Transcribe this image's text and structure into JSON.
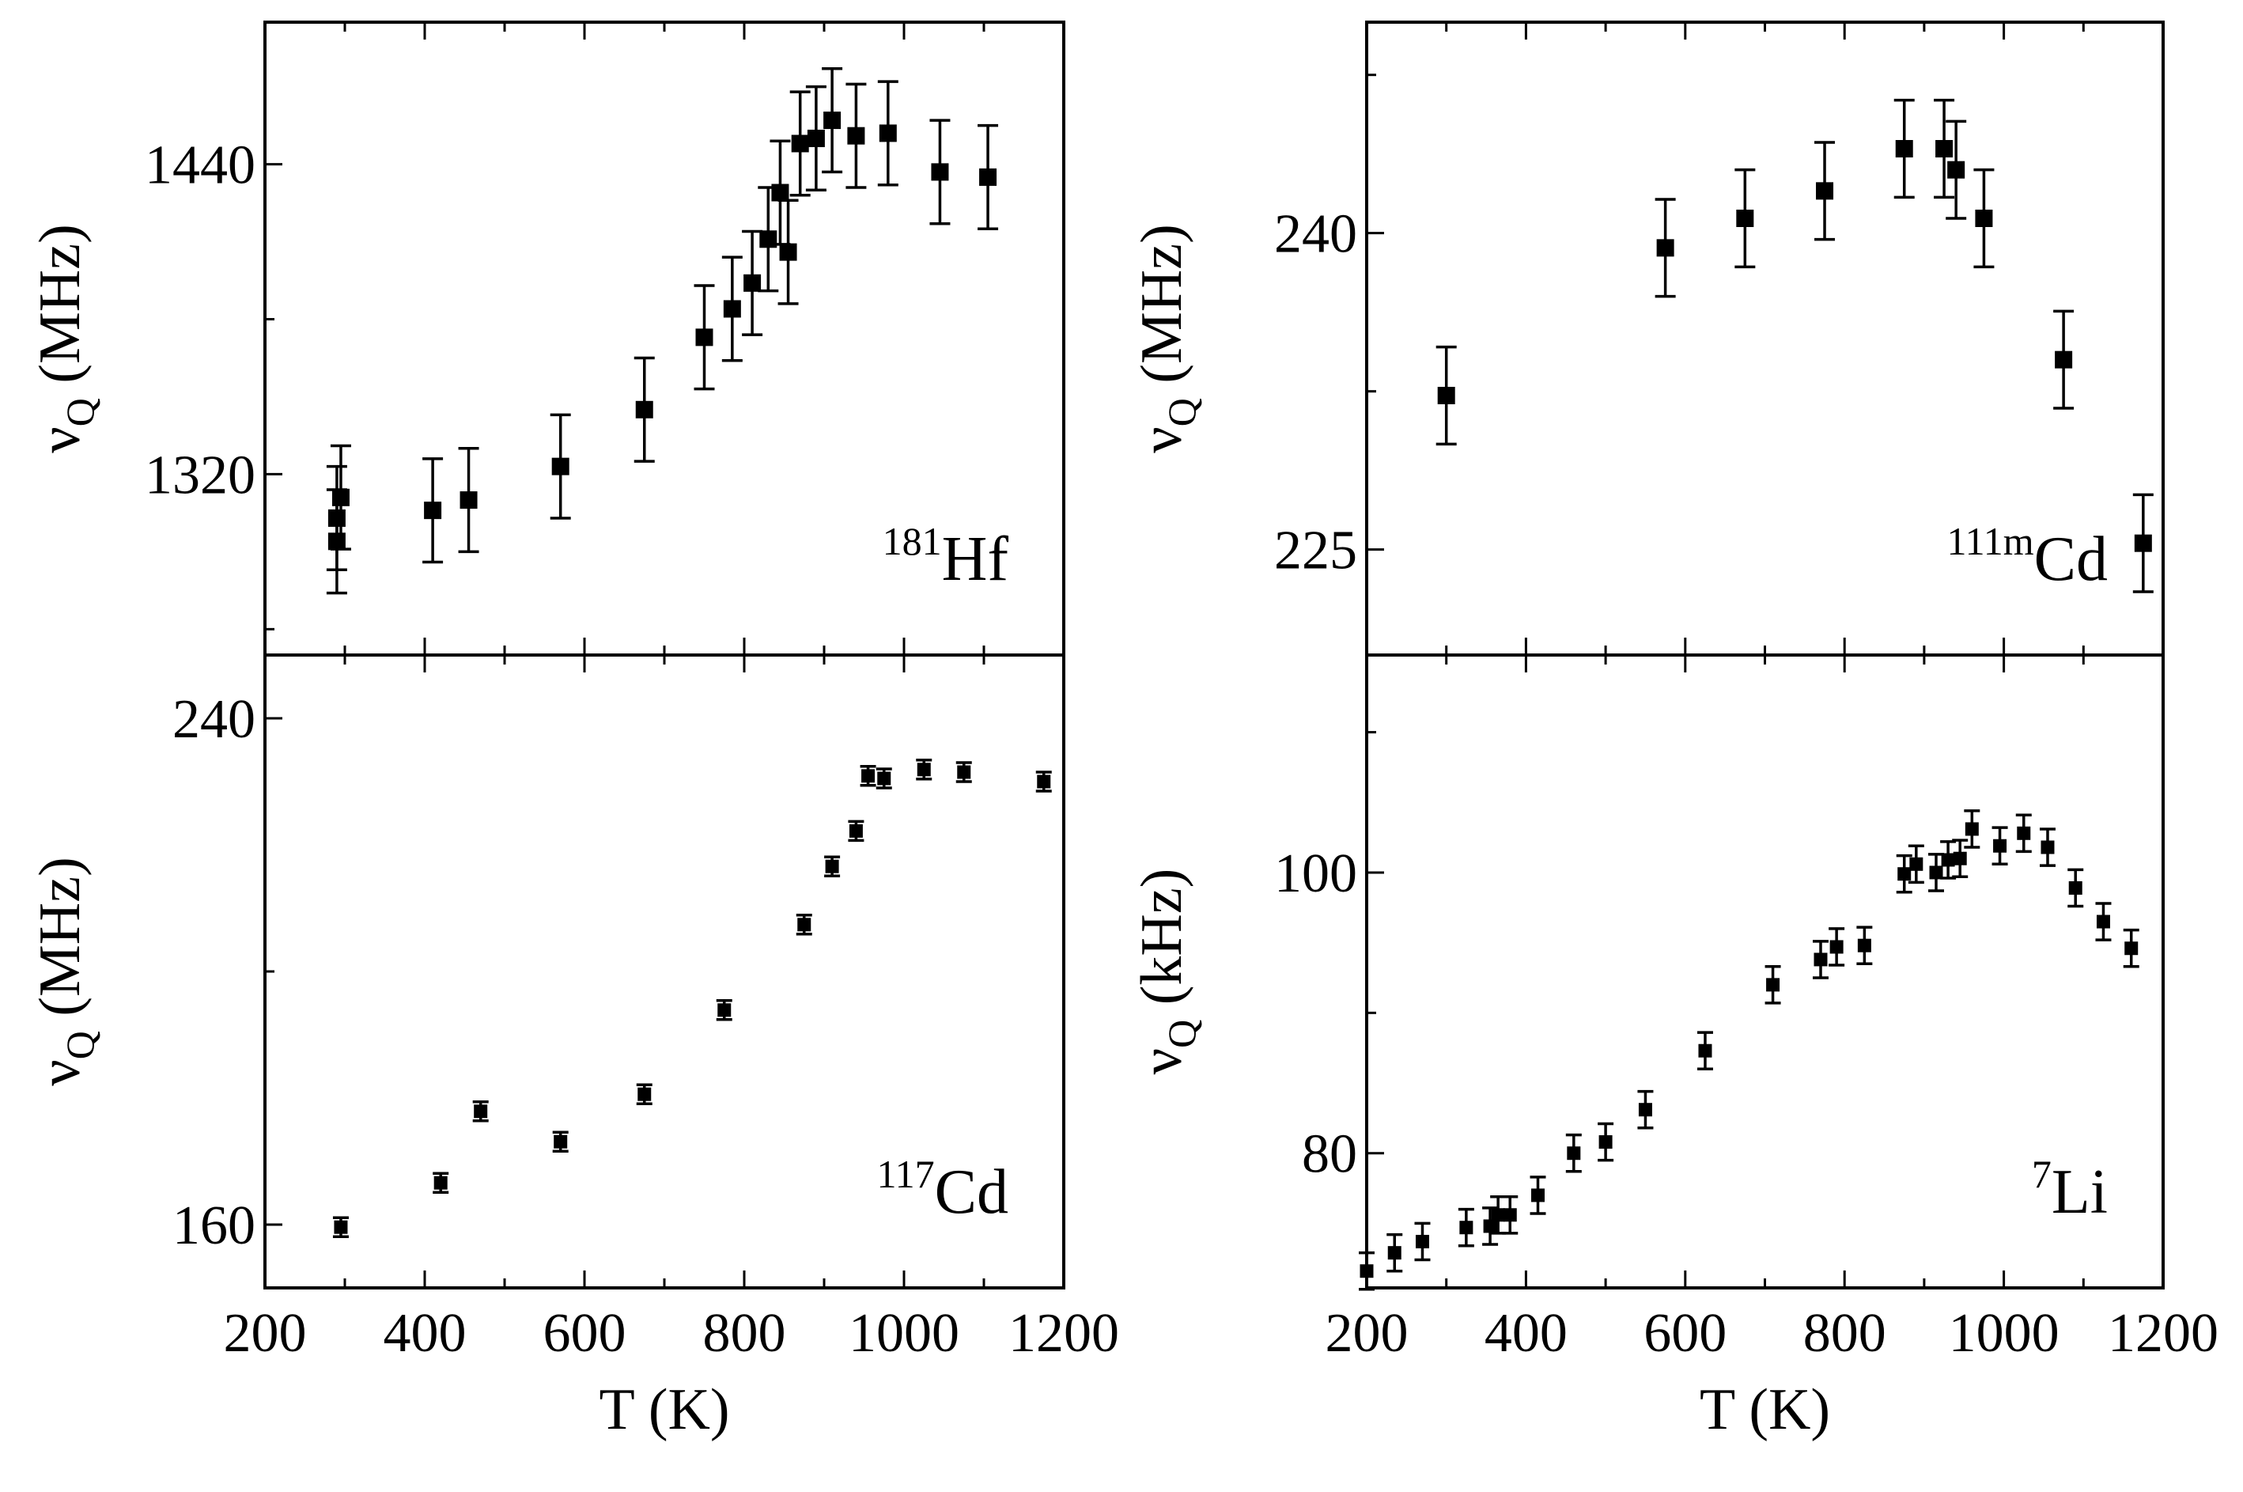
{
  "figure": {
    "x_axis_label": "T (K)",
    "accent_color": "#000000"
  },
  "chart_data": [
    {
      "id": "hf181",
      "type": "scatter",
      "panel_position": "top-left",
      "isotope": {
        "mass": "181",
        "element": "Hf"
      },
      "ylabel": {
        "symbol": "ν",
        "subscript": "Q",
        "unit": " (MHz)"
      },
      "xlim": [
        200,
        1200
      ],
      "ylim": [
        1250,
        1495
      ],
      "y_ticks": [
        1320,
        1440
      ],
      "show_x_ticklabels": false,
      "legend": "none",
      "series": [
        {
          "name": "181Hf",
          "x": [
            290,
            290,
            295,
            410,
            455,
            570,
            675,
            750,
            785,
            810,
            830,
            845,
            855,
            870,
            890,
            910,
            940,
            980,
            1045,
            1105
          ],
          "y": [
            1303,
            1294,
            1311,
            1306,
            1310,
            1323,
            1345,
            1373,
            1384,
            1394,
            1411,
            1429,
            1406,
            1448,
            1450,
            1457,
            1451,
            1452,
            1437,
            1435
          ],
          "yerr": [
            20,
            20,
            20,
            20,
            20,
            20,
            20,
            20,
            20,
            20,
            20,
            20,
            20,
            20,
            20,
            20,
            20,
            20,
            20,
            20
          ]
        }
      ]
    },
    {
      "id": "cd111m",
      "type": "scatter",
      "panel_position": "top-right",
      "isotope": {
        "mass": "111m",
        "element": "Cd"
      },
      "ylabel": {
        "symbol": "ν",
        "subscript": "Q",
        "unit": " (MHz)"
      },
      "xlim": [
        200,
        1200
      ],
      "ylim": [
        220,
        250
      ],
      "y_ticks": [
        225,
        240
      ],
      "show_x_ticklabels": false,
      "legend": "none",
      "series": [
        {
          "name": "111mCd",
          "x": [
            300,
            575,
            675,
            775,
            875,
            925,
            940,
            975,
            1075,
            1175
          ],
          "y": [
            232.3,
            239.3,
            240.7,
            242.0,
            244.0,
            244.0,
            243.0,
            240.7,
            234.0,
            225.3
          ],
          "yerr": [
            2.3,
            2.3,
            2.3,
            2.3,
            2.3,
            2.3,
            2.3,
            2.3,
            2.3,
            2.3
          ]
        }
      ]
    },
    {
      "id": "cd117",
      "type": "scatter",
      "panel_position": "bottom-left",
      "isotope": {
        "mass": "117",
        "element": "Cd"
      },
      "ylabel": {
        "symbol": "ν",
        "subscript": "Q",
        "unit": " (MHz)"
      },
      "xlim": [
        200,
        1200
      ],
      "ylim": [
        150,
        250
      ],
      "y_ticks": [
        160,
        240
      ],
      "x_ticks": [
        200,
        400,
        600,
        800,
        1000,
        1200
      ],
      "xlabel": "T (K)",
      "show_x_ticklabels": true,
      "legend": "none",
      "series": [
        {
          "name": "117Cd",
          "x": [
            295,
            420,
            470,
            570,
            675,
            775,
            875,
            910,
            940,
            955,
            975,
            1025,
            1075,
            1175
          ],
          "y": [
            159.6,
            166.6,
            177.9,
            173.1,
            180.6,
            193.9,
            207.4,
            216.6,
            222.2,
            230.9,
            230.5,
            231.9,
            231.5,
            230.0
          ],
          "yerr": [
            1.5,
            1.5,
            1.5,
            1.5,
            1.5,
            1.5,
            1.5,
            1.5,
            1.5,
            1.5,
            1.5,
            1.5,
            1.5,
            1.5
          ]
        }
      ]
    },
    {
      "id": "li7",
      "type": "scatter",
      "panel_position": "bottom-right",
      "isotope": {
        "mass": "7",
        "element": "Li"
      },
      "ylabel": {
        "symbol": "ν",
        "subscript": "Q",
        "unit": " (kHz)"
      },
      "xlim": [
        200,
        1200
      ],
      "ylim": [
        70.4,
        115.5
      ],
      "y_ticks": [
        80,
        100
      ],
      "x_ticks": [
        200,
        400,
        600,
        800,
        1000,
        1200
      ],
      "xlabel": "T (K)",
      "show_x_ticklabels": true,
      "legend": "none",
      "series": [
        {
          "name": "7Li",
          "x": [
            200,
            235,
            270,
            325,
            355,
            365,
            380,
            415,
            460,
            500,
            550,
            625,
            710,
            770,
            790,
            825,
            875,
            890,
            915,
            930,
            945,
            960,
            995,
            1025,
            1055,
            1090,
            1125,
            1160
          ],
          "y": [
            71.6,
            72.9,
            73.7,
            74.7,
            74.8,
            75.6,
            75.6,
            77.0,
            80.0,
            80.8,
            83.1,
            87.3,
            92.0,
            93.8,
            94.7,
            94.8,
            99.9,
            100.6,
            100.0,
            100.9,
            101.0,
            103.1,
            101.9,
            102.8,
            101.8,
            98.9,
            96.5,
            94.6
          ],
          "yerr": [
            1.3,
            1.3,
            1.3,
            1.3,
            1.3,
            1.3,
            1.3,
            1.3,
            1.3,
            1.3,
            1.3,
            1.3,
            1.3,
            1.3,
            1.3,
            1.3,
            1.3,
            1.3,
            1.3,
            1.3,
            1.3,
            1.3,
            1.3,
            1.3,
            1.3,
            1.3,
            1.3,
            1.3
          ]
        }
      ]
    }
  ]
}
